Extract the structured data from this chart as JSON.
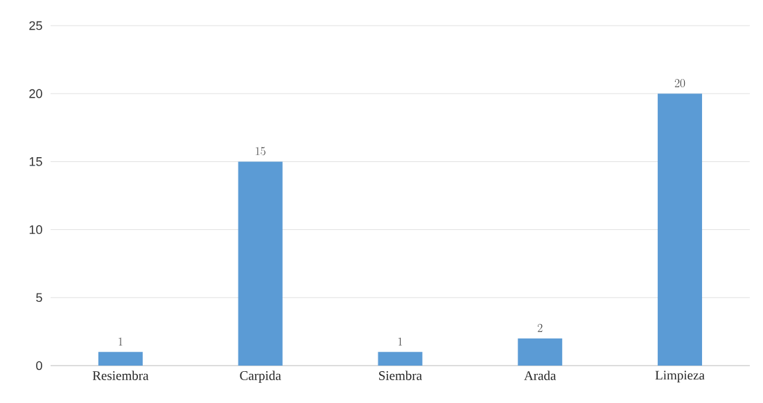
{
  "chart_data": {
    "type": "bar",
    "categories": [
      "Resiembra",
      "Carpida",
      "Siembra",
      "Arada",
      "Limpieza"
    ],
    "values": [
      1,
      15,
      1,
      2,
      20
    ],
    "color": "#5b9bd5",
    "ylim": [
      0,
      25
    ],
    "yticks": [
      0,
      5,
      10,
      15,
      20,
      25
    ],
    "grid": "y",
    "data_labels": true
  }
}
